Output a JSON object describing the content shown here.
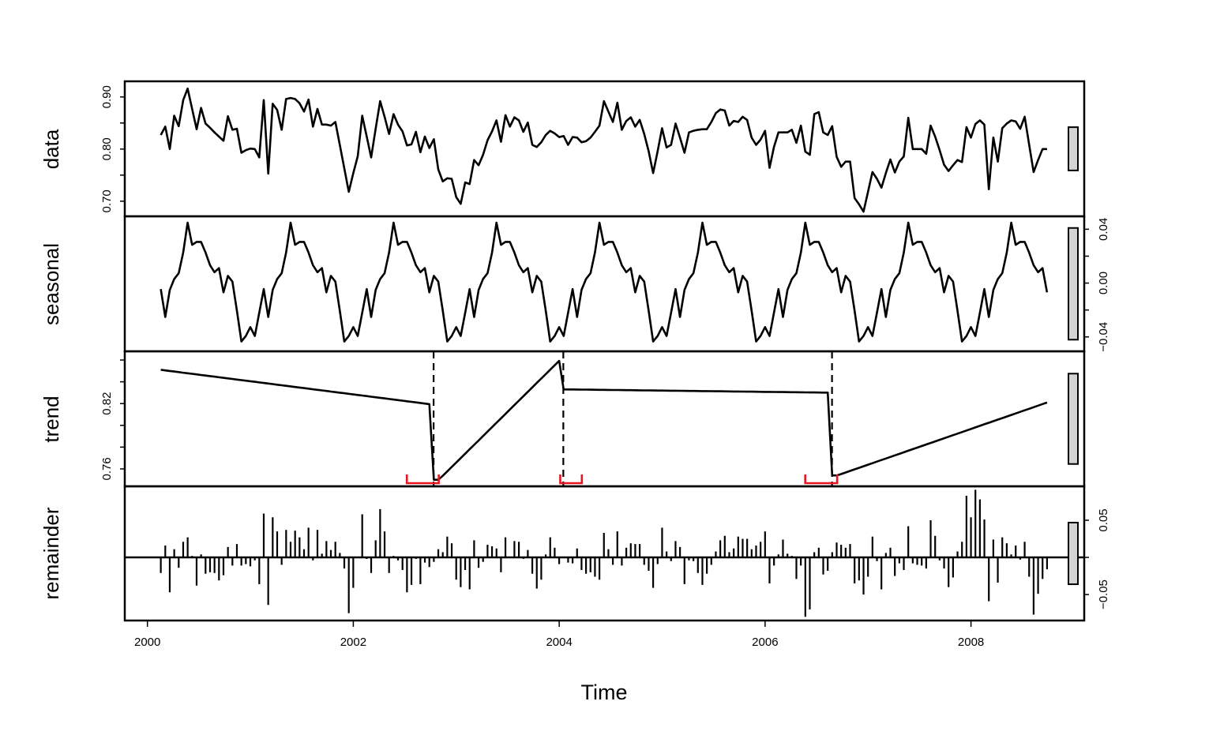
{
  "chart_data": {
    "type": "line",
    "layout": "stacked decomposition panels",
    "xlabel": "Time",
    "x_ticks": [
      2000,
      2002,
      2004,
      2006,
      2008
    ],
    "xlim": [
      1999.78,
      2009.1
    ],
    "series_start": 2000.13,
    "frequency": 23,
    "colors": {
      "line": "#000000",
      "confidence_interval": "#e8141e",
      "range_bar": "#d3d3d3"
    },
    "panels": [
      {
        "name": "data",
        "label": "data",
        "axis_side": "left",
        "ylim": [
          0.671,
          0.93
        ],
        "ticks": [
          0.7,
          0.75,
          0.8,
          0.85,
          0.9
        ],
        "tick_labels": [
          "0.70",
          "0.80",
          "0.90"
        ],
        "tick_label_values": [
          0.7,
          0.8,
          0.9
        ],
        "values": [
          0.827,
          0.843,
          0.8,
          0.864,
          0.844,
          0.894,
          0.916,
          0.877,
          0.838,
          0.879,
          0.849,
          0.841,
          0.832,
          0.824,
          0.816,
          0.863,
          0.837,
          0.839,
          0.793,
          0.798,
          0.801,
          0.8,
          0.784,
          0.894,
          0.753,
          0.887,
          0.875,
          0.837,
          0.896,
          0.898,
          0.896,
          0.888,
          0.872,
          0.895,
          0.843,
          0.877,
          0.847,
          0.847,
          0.845,
          0.852,
          0.808,
          0.763,
          0.718,
          0.754,
          0.786,
          0.864,
          0.824,
          0.784,
          0.839,
          0.892,
          0.862,
          0.829,
          0.867,
          0.847,
          0.834,
          0.807,
          0.809,
          0.833,
          0.794,
          0.824,
          0.802,
          0.819,
          0.761,
          0.738,
          0.744,
          0.743,
          0.708,
          0.695,
          0.736,
          0.733,
          0.779,
          0.769,
          0.789,
          0.817,
          0.834,
          0.855,
          0.814,
          0.865,
          0.843,
          0.861,
          0.855,
          0.833,
          0.851,
          0.808,
          0.804,
          0.813,
          0.827,
          0.835,
          0.83,
          0.823,
          0.825,
          0.808,
          0.823,
          0.822,
          0.813,
          0.815,
          0.822,
          0.833,
          0.845,
          0.892,
          0.872,
          0.852,
          0.889,
          0.837,
          0.854,
          0.861,
          0.843,
          0.856,
          0.829,
          0.796,
          0.754,
          0.796,
          0.84,
          0.803,
          0.808,
          0.849,
          0.822,
          0.793,
          0.832,
          0.835,
          0.837,
          0.838,
          0.838,
          0.852,
          0.869,
          0.876,
          0.874,
          0.845,
          0.854,
          0.852,
          0.862,
          0.856,
          0.822,
          0.808,
          0.818,
          0.835,
          0.764,
          0.804,
          0.832,
          0.832,
          0.832,
          0.837,
          0.812,
          0.845,
          0.795,
          0.789,
          0.867,
          0.871,
          0.832,
          0.827,
          0.844,
          0.785,
          0.766,
          0.776,
          0.776,
          0.706,
          0.694,
          0.68,
          0.718,
          0.756,
          0.743,
          0.726,
          0.754,
          0.78,
          0.755,
          0.776,
          0.786,
          0.86,
          0.8,
          0.8,
          0.8,
          0.791,
          0.845,
          0.824,
          0.798,
          0.77,
          0.758,
          0.769,
          0.779,
          0.775,
          0.842,
          0.822,
          0.848,
          0.855,
          0.847,
          0.723,
          0.822,
          0.776,
          0.84,
          0.849,
          0.855,
          0.853,
          0.839,
          0.862,
          0.809,
          0.756,
          0.779,
          0.8,
          0.8
        ]
      },
      {
        "name": "seasonal",
        "label": "seasonal",
        "axis_side": "right",
        "ylim": [
          -0.0507,
          0.0496
        ],
        "ticks": [
          -0.04,
          -0.02,
          0.0,
          0.02,
          0.04
        ],
        "tick_labels": [
          "-0.04",
          "0.00",
          "0.04"
        ],
        "tick_label_values": [
          -0.04,
          0.0,
          0.04
        ],
        "cycle": [
          -0.0045,
          -0.0252,
          -0.0051,
          0.003,
          0.0073,
          0.0227,
          0.0449,
          0.0284,
          0.0306,
          0.0306,
          0.0227,
          0.0133,
          0.0081,
          0.0111,
          -0.0069,
          0.0054,
          0.0011,
          -0.0205,
          -0.0434,
          -0.0393,
          -0.0327,
          -0.0393,
          -0.022
        ]
      },
      {
        "name": "trend",
        "label": "trend",
        "axis_side": "left",
        "ylim": [
          0.744,
          0.868
        ],
        "ticks": [
          0.76,
          0.78,
          0.8,
          0.82,
          0.84,
          0.86
        ],
        "tick_labels": [
          "0.76",
          "0.82"
        ],
        "tick_label_values": [
          0.76,
          0.82
        ],
        "segments": [
          {
            "from": 2000.13,
            "to": 2002.78,
            "start_value": 0.851,
            "end_value": 0.819
          },
          {
            "from": 2002.83,
            "to": 2004.04,
            "start_value": 0.75,
            "end_value": 0.863
          },
          {
            "from": 2004.09,
            "to": 2006.65,
            "start_value": 0.833,
            "end_value": 0.83
          },
          {
            "from": 2006.7,
            "to": 2008.74,
            "start_value": 0.754,
            "end_value": 0.821
          }
        ],
        "breakpoints": [
          2002.78,
          2004.04,
          2006.65
        ],
        "confidence_intervals": [
          [
            2002.52,
            2002.83
          ],
          [
            2004.01,
            2004.22
          ],
          [
            2006.39,
            2006.7
          ]
        ]
      },
      {
        "name": "remainder",
        "label": "remainder",
        "axis_side": "right",
        "style": "bars",
        "ylim": [
          -0.085,
          0.0957
        ],
        "ticks": [
          -0.05,
          0.0,
          0.05
        ],
        "tick_labels": [
          "-0.05",
          "0.05"
        ],
        "tick_label_values": [
          -0.05,
          0.05
        ],
        "values": [
          -0.021,
          0.016,
          -0.047,
          0.011,
          -0.014,
          0.021,
          0.027,
          0.002,
          -0.038,
          0.004,
          -0.022,
          -0.02,
          -0.021,
          -0.031,
          -0.024,
          0.014,
          -0.011,
          0.018,
          -0.011,
          -0.009,
          -0.012,
          -0.004,
          -0.036,
          0.059,
          -0.064,
          0.054,
          0.035,
          -0.01,
          0.037,
          0.021,
          0.036,
          0.027,
          0.011,
          0.04,
          -0.004,
          0.037,
          0.005,
          0.022,
          0.01,
          0.021,
          0.006,
          -0.015,
          -0.075,
          -0.041,
          0.0,
          0.058,
          -0.002,
          -0.021,
          0.023,
          0.065,
          0.035,
          -0.021,
          0.002,
          -0.004,
          -0.017,
          -0.047,
          -0.037,
          -0.002,
          -0.036,
          -0.007,
          -0.013,
          -0.006,
          0.011,
          0.007,
          0.028,
          0.019,
          -0.03,
          -0.04,
          -0.017,
          -0.043,
          0.023,
          -0.014,
          -0.006,
          0.017,
          0.015,
          0.012,
          -0.02,
          0.027,
          0.0,
          0.022,
          0.021,
          -0.002,
          0.01,
          -0.022,
          -0.042,
          -0.03,
          0.004,
          0.027,
          0.013,
          -0.009,
          0.0,
          -0.007,
          -0.008,
          0.012,
          -0.017,
          -0.022,
          -0.02,
          -0.026,
          -0.03,
          0.033,
          0.011,
          -0.01,
          0.035,
          -0.011,
          0.013,
          0.019,
          0.018,
          0.018,
          -0.01,
          -0.018,
          -0.041,
          -0.009,
          0.04,
          0.008,
          -0.005,
          0.022,
          0.014,
          -0.036,
          -0.004,
          -0.005,
          -0.021,
          -0.037,
          -0.022,
          -0.01,
          0.008,
          0.023,
          0.029,
          0.007,
          0.012,
          0.028,
          0.025,
          0.025,
          0.011,
          0.016,
          0.021,
          0.035,
          -0.035,
          -0.011,
          0.004,
          0.024,
          0.005,
          0.002,
          -0.029,
          -0.011,
          -0.08,
          -0.07,
          0.007,
          0.013,
          -0.023,
          -0.018,
          0.007,
          0.02,
          0.017,
          0.013,
          0.018,
          -0.035,
          -0.031,
          -0.05,
          -0.026,
          0.028,
          -0.005,
          -0.043,
          0.006,
          0.013,
          -0.025,
          -0.008,
          -0.017,
          0.042,
          -0.008,
          -0.01,
          -0.011,
          -0.015,
          0.05,
          0.029,
          -0.004,
          -0.015,
          -0.04,
          -0.027,
          0.008,
          0.021,
          0.083,
          0.054,
          0.091,
          0.078,
          0.051,
          -0.059,
          0.024,
          -0.034,
          0.027,
          0.019,
          0.004,
          0.016,
          -0.003,
          0.021,
          -0.026,
          -0.077,
          -0.049,
          -0.029,
          -0.016
        ]
      }
    ],
    "range_bar_length": 0.083
  }
}
